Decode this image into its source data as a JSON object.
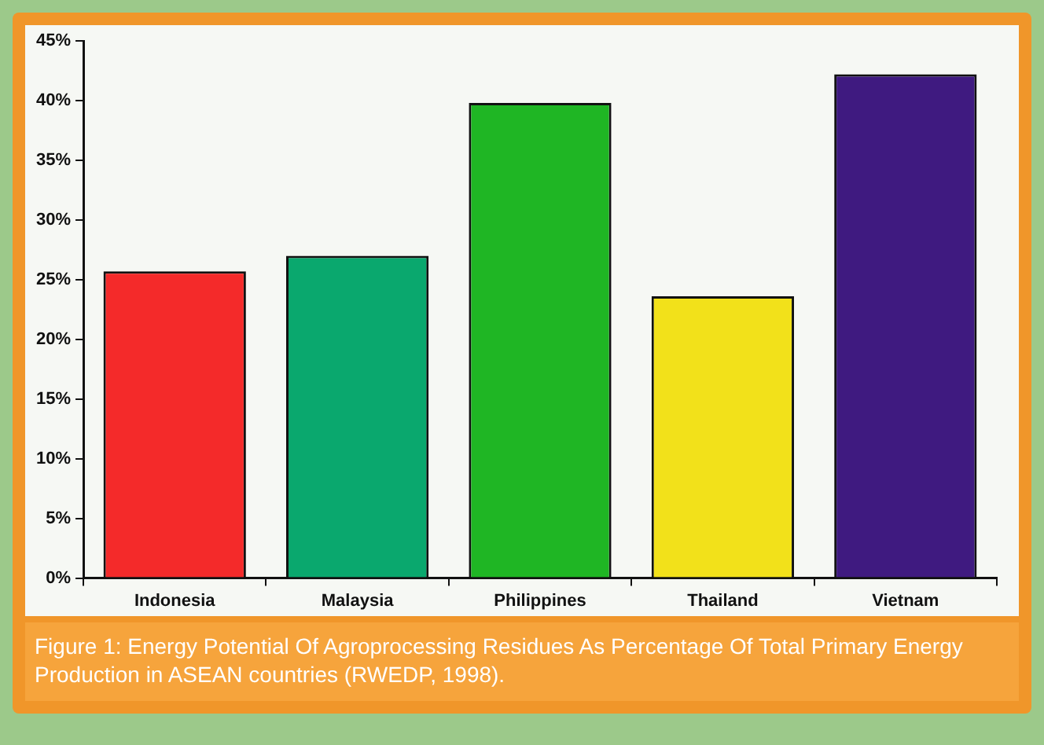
{
  "chart_data": {
    "type": "bar",
    "categories": [
      "Indonesia",
      "Malaysia",
      "Philippines",
      "Thailand",
      "Vietnam"
    ],
    "values": [
      25.7,
      27,
      39.8,
      23.6,
      42.2
    ],
    "colors": [
      "#f42a2a",
      "#0aa86e",
      "#1fb624",
      "#f2e11a",
      "#3f1a80"
    ],
    "ylim": [
      0,
      45
    ],
    "yticks": [
      {
        "value": 0,
        "label": "0%"
      },
      {
        "value": 5,
        "label": "5%"
      },
      {
        "value": 10,
        "label": "10%"
      },
      {
        "value": 15,
        "label": "15%"
      },
      {
        "value": 20,
        "label": "20%"
      },
      {
        "value": 25,
        "label": "25%"
      },
      {
        "value": 30,
        "label": "30%"
      },
      {
        "value": 35,
        "label": "35%"
      },
      {
        "value": 40,
        "label": "40%"
      },
      {
        "value": 45,
        "label": "45%"
      }
    ],
    "grid": false,
    "legend": false,
    "annotations": [
      "Figure 1: Energy Potential Of Agroprocessing Residues As Percentage Of Total Primary Energy Production in ASEAN countries (RWEDP, 1998)."
    ]
  }
}
